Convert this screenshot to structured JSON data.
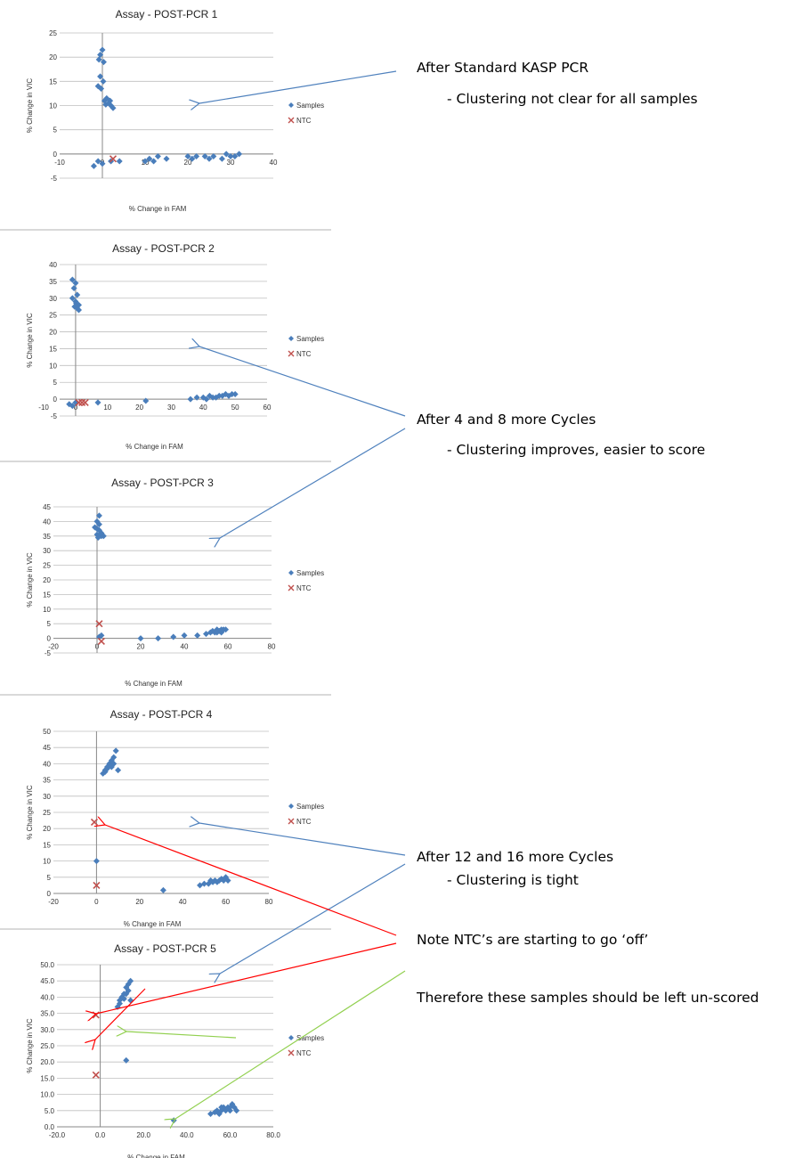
{
  "colors": {
    "samples": "#4A7EBB",
    "ntc": "#C0504D",
    "arrow_blue": "#4F81BD",
    "arrow_red": "#FF0000",
    "arrow_green": "#92D050",
    "gridline": "#BFBFBF",
    "separator": "#D9D9D9"
  },
  "annotations": {
    "a1_title": "After Standard KASP PCR",
    "a1_sub": "- Clustering not clear for all samples",
    "a2_title": "After 4 and 8 more Cycles",
    "a2_sub": "- Clustering improves, easier to score",
    "a3_title": "After 12 and 16 more Cycles",
    "a3_sub": "- Clustering is tight",
    "a4_title": "Note NTC’s are  starting to go ‘off’",
    "a5_title": "Therefore these samples should be left un-scored"
  },
  "chart_data": [
    {
      "type": "scatter",
      "title": "Assay - POST-PCR 1",
      "xlabel": "% Change in FAM",
      "ylabel": "% Change in VIC",
      "xlim": [
        -10,
        40
      ],
      "ylim": [
        -5,
        25
      ],
      "xticks": [
        "-10",
        "0",
        "10",
        "20",
        "30",
        "40"
      ],
      "yticks": [
        "-5",
        "0",
        "5",
        "10",
        "15",
        "20",
        "25"
      ],
      "legend": "right",
      "grid": true,
      "series": [
        {
          "name": "Samples",
          "marker": "diamond",
          "points": [
            [
              -0.5,
              20.5
            ],
            [
              0,
              21.5
            ],
            [
              -0.8,
              19.5
            ],
            [
              0.3,
              19
            ],
            [
              -0.5,
              16
            ],
            [
              0.2,
              15
            ],
            [
              -1,
              14
            ],
            [
              -0.3,
              13.5
            ],
            [
              0.5,
              11
            ],
            [
              1,
              11.5
            ],
            [
              1.5,
              10.5
            ],
            [
              2,
              10
            ],
            [
              2.5,
              9.5
            ],
            [
              1.8,
              11
            ],
            [
              0.8,
              10.2
            ],
            [
              -2,
              -2.5
            ],
            [
              -1,
              -1.5
            ],
            [
              0,
              -2
            ],
            [
              2,
              -1.5
            ],
            [
              4,
              -1.5
            ],
            [
              10,
              -1.5
            ],
            [
              11,
              -1
            ],
            [
              12,
              -1.5
            ],
            [
              13,
              -0.5
            ],
            [
              15,
              -1
            ],
            [
              20,
              -0.5
            ],
            [
              21,
              -1
            ],
            [
              22,
              -0.5
            ],
            [
              24,
              -0.5
            ],
            [
              25,
              -1
            ],
            [
              26,
              -0.5
            ],
            [
              28,
              -1
            ],
            [
              29,
              0
            ],
            [
              30,
              -0.5
            ],
            [
              31,
              -0.5
            ],
            [
              32,
              0
            ]
          ]
        },
        {
          "name": "NTC",
          "marker": "x",
          "points": [
            [
              2.5,
              -1
            ]
          ]
        }
      ]
    },
    {
      "type": "scatter",
      "title": "Assay - POST-PCR 2",
      "xlabel": "% Change in FAM",
      "ylabel": "% Change in VIC",
      "xlim": [
        -5,
        60
      ],
      "ylim": [
        -5,
        40
      ],
      "xticks": [
        "-10",
        "0",
        "10",
        "20",
        "30",
        "40",
        "50",
        "60"
      ],
      "yticks": [
        "-5",
        "0",
        "5",
        "10",
        "15",
        "20",
        "25",
        "30",
        "35",
        "40"
      ],
      "legend": "right",
      "grid": true,
      "series": [
        {
          "name": "Samples",
          "marker": "diamond",
          "points": [
            [
              -1,
              35.5
            ],
            [
              0,
              34.5
            ],
            [
              -0.5,
              33
            ],
            [
              0.5,
              31
            ],
            [
              -1,
              30
            ],
            [
              0,
              29
            ],
            [
              1,
              28
            ],
            [
              -0.3,
              27.5
            ],
            [
              0.5,
              27
            ],
            [
              1,
              26.5
            ],
            [
              0.2,
              28.5
            ],
            [
              -2,
              -1.5
            ],
            [
              -1,
              -2
            ],
            [
              0,
              -1
            ],
            [
              7,
              -1
            ],
            [
              22,
              -0.5
            ],
            [
              36,
              0
            ],
            [
              38,
              0.5
            ],
            [
              40,
              0.5
            ],
            [
              41,
              0
            ],
            [
              42,
              1
            ],
            [
              43,
              0.5
            ],
            [
              44,
              0.5
            ],
            [
              45,
              1
            ],
            [
              46,
              1
            ],
            [
              47,
              1.5
            ],
            [
              48,
              1
            ],
            [
              49,
              1.5
            ],
            [
              50,
              1.5
            ]
          ]
        },
        {
          "name": "NTC",
          "marker": "x",
          "points": [
            [
              1,
              -1
            ],
            [
              2,
              -1
            ],
            [
              3,
              -1
            ]
          ]
        }
      ]
    },
    {
      "type": "scatter",
      "title": "Assay - POST-PCR 3",
      "xlabel": "% Change in FAM",
      "ylabel": "% Change in VIC",
      "xlim": [
        -20,
        80
      ],
      "ylim": [
        -5,
        45
      ],
      "xticks": [
        "-20",
        "0",
        "20",
        "40",
        "60",
        "80"
      ],
      "yticks": [
        "-5",
        "0",
        "5",
        "10",
        "15",
        "20",
        "25",
        "30",
        "35",
        "40",
        "45"
      ],
      "legend": "right",
      "grid": true,
      "series": [
        {
          "name": "Samples",
          "marker": "diamond",
          "points": [
            [
              1,
              42
            ],
            [
              0,
              40
            ],
            [
              1,
              39
            ],
            [
              -1,
              38
            ],
            [
              0,
              37.5
            ],
            [
              1,
              37
            ],
            [
              2,
              36
            ],
            [
              0,
              35.5
            ],
            [
              1,
              35
            ],
            [
              2,
              35
            ],
            [
              3,
              35
            ],
            [
              0.5,
              34.5
            ],
            [
              1,
              0.5
            ],
            [
              2,
              1
            ],
            [
              20,
              0
            ],
            [
              28,
              0
            ],
            [
              35,
              0.5
            ],
            [
              40,
              1
            ],
            [
              46,
              1
            ],
            [
              50,
              1.5
            ],
            [
              52,
              2
            ],
            [
              53,
              2.5
            ],
            [
              54,
              2
            ],
            [
              55,
              3
            ],
            [
              56,
              2.5
            ],
            [
              57,
              3
            ],
            [
              58,
              3
            ],
            [
              59,
              3
            ],
            [
              55,
              2
            ],
            [
              57,
              2
            ]
          ]
        },
        {
          "name": "NTC",
          "marker": "x",
          "points": [
            [
              1,
              5
            ],
            [
              2,
              -1
            ]
          ]
        }
      ]
    },
    {
      "type": "scatter",
      "title": "Assay - POST-PCR 4",
      "xlabel": "% Change in FAM",
      "ylabel": "% Change in VIC",
      "xlim": [
        -20,
        80
      ],
      "ylim": [
        0,
        50
      ],
      "xticks": [
        "-20",
        "0",
        "20",
        "40",
        "60",
        "80"
      ],
      "yticks": [
        "0",
        "5",
        "10",
        "15",
        "20",
        "25",
        "30",
        "35",
        "40",
        "45",
        "50"
      ],
      "legend": "right",
      "grid": true,
      "series": [
        {
          "name": "Samples",
          "marker": "diamond",
          "points": [
            [
              3,
              37
            ],
            [
              4,
              38
            ],
            [
              5,
              39
            ],
            [
              6,
              40
            ],
            [
              7,
              41
            ],
            [
              8,
              42
            ],
            [
              9,
              44
            ],
            [
              4,
              37.5
            ],
            [
              5,
              38.5
            ],
            [
              7,
              39
            ],
            [
              8,
              40
            ],
            [
              10,
              38
            ],
            [
              0,
              10
            ],
            [
              31,
              1
            ],
            [
              48,
              2.5
            ],
            [
              50,
              3
            ],
            [
              52,
              3
            ],
            [
              53,
              4
            ],
            [
              54,
              3.5
            ],
            [
              55,
              4
            ],
            [
              56,
              3.5
            ],
            [
              57,
              4
            ],
            [
              58,
              4.5
            ],
            [
              59,
              4
            ],
            [
              60,
              5
            ],
            [
              61,
              4
            ]
          ]
        },
        {
          "name": "NTC",
          "marker": "x",
          "points": [
            [
              -1,
              22
            ],
            [
              0,
              2.5
            ]
          ]
        }
      ]
    },
    {
      "type": "scatter",
      "title": "Assay - POST-PCR 5",
      "xlabel": "% Change in FAM",
      "ylabel": "% Change in VIC",
      "xlim": [
        -20,
        80
      ],
      "ylim": [
        0,
        50
      ],
      "xticks": [
        "-20.0",
        "0.0",
        "20.0",
        "40.0",
        "60.0",
        "80.0"
      ],
      "yticks": [
        "0.0",
        "5.0",
        "10.0",
        "15.0",
        "20.0",
        "25.0",
        "30.0",
        "35.0",
        "40.0",
        "45.0",
        "50.0"
      ],
      "legend": "right",
      "grid": true,
      "series": [
        {
          "name": "Samples",
          "marker": "diamond",
          "points": [
            [
              8,
              37
            ],
            [
              9,
              38
            ],
            [
              10,
              40
            ],
            [
              11,
              41
            ],
            [
              12,
              43
            ],
            [
              13,
              44
            ],
            [
              14,
              45
            ],
            [
              9,
              39
            ],
            [
              11,
              39.5
            ],
            [
              12,
              41
            ],
            [
              14,
              39
            ],
            [
              13,
              42
            ],
            [
              12,
              20.5
            ],
            [
              34,
              2
            ],
            [
              51,
              4
            ],
            [
              53,
              4.5
            ],
            [
              54,
              5
            ],
            [
              55,
              4
            ],
            [
              56,
              5
            ],
            [
              57,
              6
            ],
            [
              58,
              5
            ],
            [
              59,
              6
            ],
            [
              60,
              5
            ],
            [
              61,
              7
            ],
            [
              62,
              6
            ],
            [
              63,
              5
            ],
            [
              56,
              6
            ],
            [
              60,
              6
            ]
          ]
        },
        {
          "name": "NTC",
          "marker": "x",
          "points": [
            [
              -2,
              34.5
            ],
            [
              -2,
              16
            ]
          ]
        }
      ]
    }
  ]
}
